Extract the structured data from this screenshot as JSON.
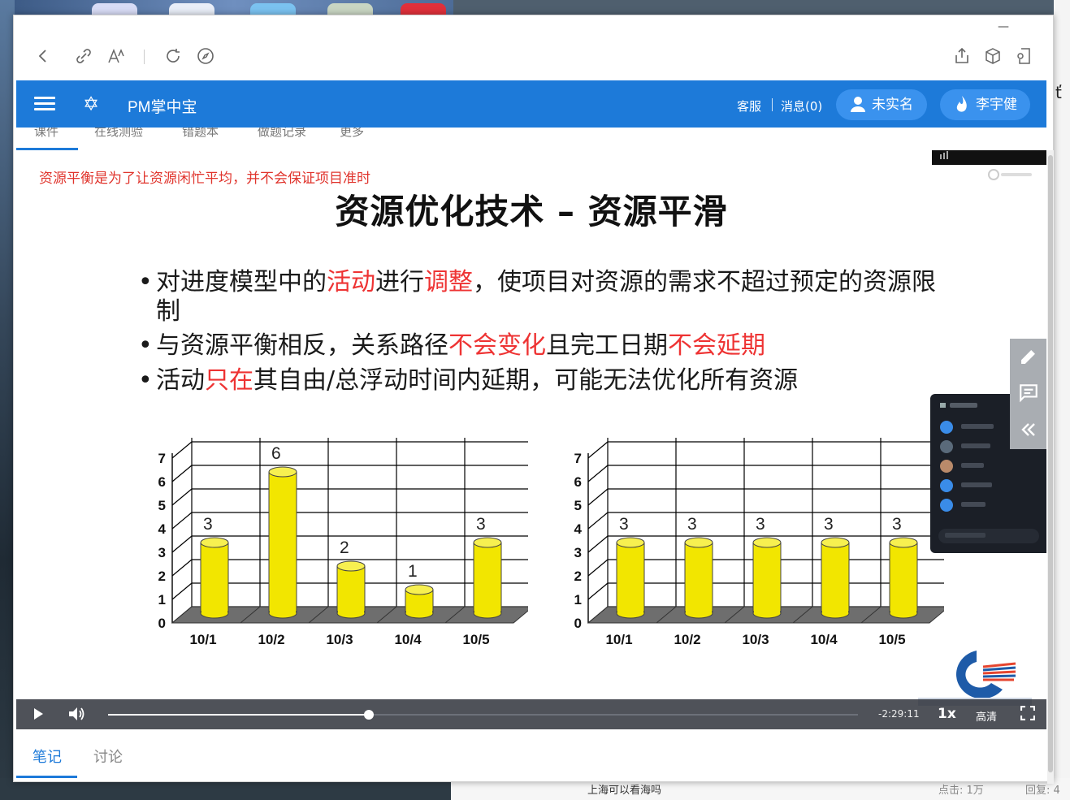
{
  "browser": {
    "back_icon": "back-arrow-icon",
    "share_link_icon": "link-icon",
    "font_icon": "font-size-icon",
    "refresh_icon": "refresh-icon",
    "compass_icon": "compass-icon"
  },
  "app": {
    "title": "PM掌中宝",
    "nav": {
      "service": "客服",
      "messages": "消息(0)"
    },
    "user_verify": "未实名",
    "user_name": "李宇健",
    "accent": "#1d7ad9"
  },
  "slide": {
    "note": "资源平衡是为了让资源闲忙平均，并不会保证项目准时",
    "title": "资源优化技术 – 资源平滑",
    "bullets": [
      {
        "parts": [
          {
            "t": "对进度模型中的"
          },
          {
            "t": "活动",
            "red": true
          },
          {
            "t": "进行"
          },
          {
            "t": "调整",
            "red": true
          },
          {
            "t": "，使项目对资源的需求不超过预定的资源限制"
          }
        ]
      },
      {
        "parts": [
          {
            "t": "与资源平衡相反，关系路径"
          },
          {
            "t": "不会变化",
            "red": true
          },
          {
            "t": "且完工日期"
          },
          {
            "t": "不会延期",
            "red": true
          }
        ]
      },
      {
        "parts": [
          {
            "t": "活动"
          },
          {
            "t": "只在",
            "red": true
          },
          {
            "t": "其自由/总浮动时间内延期，可能无法优化所有资源"
          }
        ]
      }
    ]
  },
  "chart_data": [
    {
      "type": "bar",
      "categories": [
        "10/1",
        "10/2",
        "10/3",
        "10/4",
        "10/5"
      ],
      "values": [
        3,
        6,
        2,
        1,
        3
      ],
      "ylim": [
        0,
        7
      ],
      "yticks": [
        "0",
        "1",
        "2",
        "3",
        "4",
        "5",
        "6",
        "7"
      ],
      "bar_color": "#f2e600"
    },
    {
      "type": "bar",
      "categories": [
        "10/1",
        "10/2",
        "10/3",
        "10/4",
        "10/5"
      ],
      "values": [
        3,
        3,
        3,
        3,
        3
      ],
      "ylim": [
        0,
        7
      ],
      "yticks": [
        "0",
        "1",
        "2",
        "3",
        "4",
        "5",
        "6",
        "7"
      ],
      "bar_color": "#f2e600"
    }
  ],
  "player": {
    "time_remaining": "-2:29:11",
    "speed": "1x",
    "quality": "高清",
    "progress": 0.348
  },
  "tabs": {
    "notes": "笔记",
    "discussion": "讨论"
  },
  "desktop_bottom": {
    "link": "上海可以看海吗",
    "views": "点击: 1万",
    "replies": "回复: 4"
  }
}
